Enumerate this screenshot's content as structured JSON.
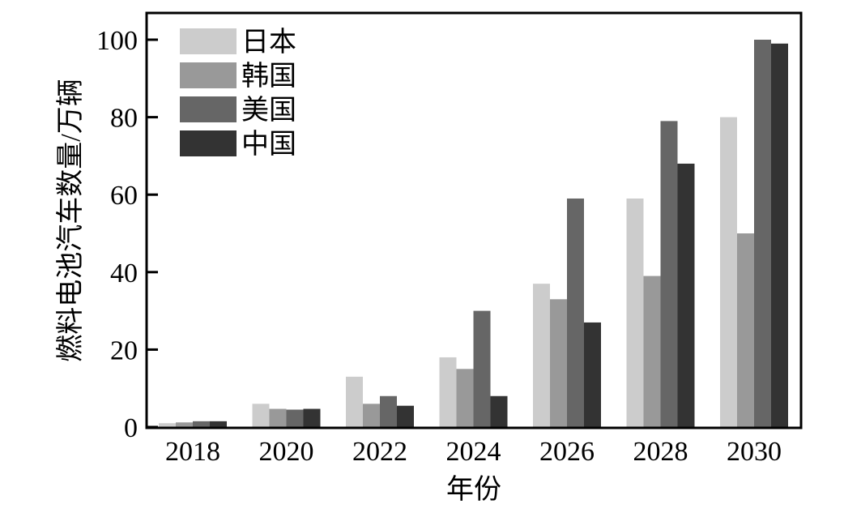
{
  "chart_data": {
    "type": "bar",
    "title": "",
    "xlabel": "年份",
    "ylabel": "燃料电池汽车数量/万辆",
    "ylim": [
      0,
      107
    ],
    "yticks": [
      0,
      20,
      40,
      60,
      80,
      100
    ],
    "grid": false,
    "legend_position": "top-left",
    "categories": [
      "2018",
      "2020",
      "2022",
      "2024",
      "2026",
      "2028",
      "2030"
    ],
    "series": [
      {
        "name": "日本",
        "color": "#cccccc",
        "values": [
          1,
          6,
          13,
          18,
          37,
          59,
          80
        ]
      },
      {
        "name": "韩国",
        "color": "#999999",
        "values": [
          1.2,
          4.7,
          6,
          15,
          33,
          39,
          50
        ]
      },
      {
        "name": "美国",
        "color": "#666666",
        "values": [
          1.5,
          4.5,
          8,
          30,
          59,
          79,
          100
        ]
      },
      {
        "name": "中国",
        "color": "#333333",
        "values": [
          1.5,
          4.7,
          5.5,
          8,
          27,
          68,
          99
        ]
      }
    ]
  }
}
